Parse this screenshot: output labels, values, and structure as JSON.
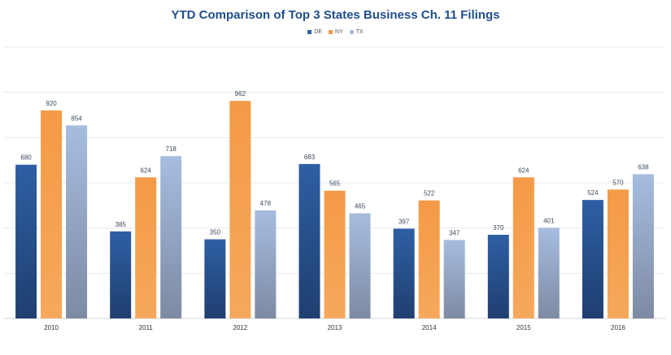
{
  "chart_data": {
    "type": "bar",
    "title": "YTD Comparison of Top 3 States Business Ch. 11 Filings",
    "categories": [
      "2010",
      "2011",
      "2012",
      "2013",
      "2014",
      "2015",
      "2016"
    ],
    "series": [
      {
        "name": "DE",
        "values": [
          680,
          385,
          350,
          683,
          397,
          370,
          524
        ],
        "color": "#2e5fa3"
      },
      {
        "name": "NY",
        "values": [
          920,
          624,
          962,
          565,
          522,
          624,
          570
        ],
        "color": "#f39a45"
      },
      {
        "name": "TX",
        "values": [
          854,
          718,
          478,
          465,
          347,
          401,
          638
        ],
        "color": "#a6bde0"
      }
    ],
    "ylim": [
      0,
      1200
    ],
    "grid": true,
    "legend_position": "top-center",
    "xlabel": "",
    "ylabel": ""
  }
}
